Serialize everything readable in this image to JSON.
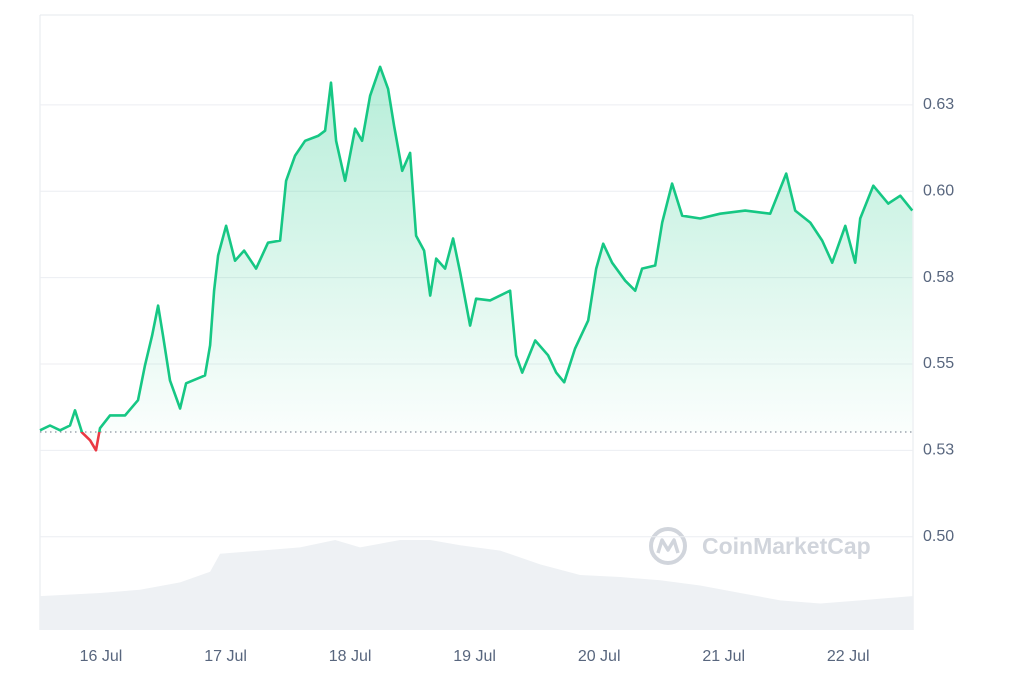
{
  "chart_data": {
    "type": "line",
    "watermark": "CoinMarketCap",
    "xlim": [
      15.51,
      22.52
    ],
    "ylim": [
      0.473,
      0.651
    ],
    "xticks": [
      {
        "value": 16,
        "label": "16 Jul"
      },
      {
        "value": 17,
        "label": "17 Jul"
      },
      {
        "value": 18,
        "label": "18 Jul"
      },
      {
        "value": 19,
        "label": "19 Jul"
      },
      {
        "value": 20,
        "label": "20 Jul"
      },
      {
        "value": 21,
        "label": "21 Jul"
      },
      {
        "value": 22,
        "label": "22 Jul"
      }
    ],
    "yticks": [
      {
        "value": 0.5,
        "label": "0.50"
      },
      {
        "value": 0.525,
        "label": "0.53"
      },
      0.55,
      {
        "value": 0.575,
        "label": "0.58"
      },
      {
        "value": 0.6,
        "label": "0.60"
      },
      {
        "value": 0.625,
        "label": "0.63"
      }
    ],
    "grid": true,
    "baseline": 0.5303,
    "up_color": "#16c784",
    "down_color": "#ea3943",
    "x": [
      15.51,
      15.59,
      15.671,
      15.751,
      15.791,
      15.847,
      15.912,
      15.96,
      15.992,
      16.072,
      16.193,
      16.297,
      16.353,
      16.41,
      16.458,
      16.498,
      16.554,
      16.635,
      16.683,
      16.835,
      16.876,
      16.908,
      16.94,
      17.004,
      17.076,
      17.149,
      17.245,
      17.341,
      17.438,
      17.486,
      17.558,
      17.639,
      17.743,
      17.799,
      17.847,
      17.888,
      17.96,
      18.04,
      18.096,
      18.161,
      18.241,
      18.305,
      18.353,
      18.418,
      18.482,
      18.53,
      18.594,
      18.643,
      18.691,
      18.763,
      18.827,
      18.884,
      18.964,
      19.012,
      19.124,
      19.285,
      19.333,
      19.382,
      19.486,
      19.59,
      19.655,
      19.719,
      19.807,
      19.912,
      19.976,
      20.032,
      20.104,
      20.209,
      20.289,
      20.345,
      20.45,
      20.506,
      20.586,
      20.667,
      20.811,
      20.972,
      21.173,
      21.373,
      21.502,
      21.574,
      21.695,
      21.791,
      21.871,
      21.976,
      22.056,
      22.096,
      22.201,
      22.321,
      22.418,
      22.514
    ],
    "values": [
      0.5308,
      0.5322,
      0.5308,
      0.5322,
      0.5366,
      0.5302,
      0.5279,
      0.525,
      0.5314,
      0.5351,
      0.5351,
      0.5395,
      0.5496,
      0.5582,
      0.5669,
      0.5582,
      0.5452,
      0.5371,
      0.5444,
      0.5467,
      0.5554,
      0.5712,
      0.5814,
      0.59,
      0.5799,
      0.5828,
      0.5776,
      0.5851,
      0.5857,
      0.603,
      0.6103,
      0.6146,
      0.616,
      0.6175,
      0.6314,
      0.6146,
      0.603,
      0.6181,
      0.6146,
      0.6276,
      0.636,
      0.6296,
      0.6189,
      0.6059,
      0.6111,
      0.5871,
      0.5828,
      0.5698,
      0.5805,
      0.5776,
      0.5863,
      0.5764,
      0.5611,
      0.5689,
      0.5684,
      0.5712,
      0.5525,
      0.5475,
      0.5568,
      0.5525,
      0.5475,
      0.5447,
      0.5545,
      0.5626,
      0.5776,
      0.5848,
      0.5793,
      0.5741,
      0.5712,
      0.5776,
      0.5785,
      0.5909,
      0.6022,
      0.5929,
      0.5921,
      0.5935,
      0.5944,
      0.5935,
      0.6051,
      0.5944,
      0.5909,
      0.5857,
      0.5793,
      0.59,
      0.5793,
      0.5921,
      0.6016,
      0.5964,
      0.5987,
      0.5944
    ],
    "volume": {
      "color": "#eef1f4",
      "x": [
        15.51,
        15.992,
        16.313,
        16.635,
        16.876,
        16.956,
        17.277,
        17.598,
        17.88,
        18.08,
        18.402,
        18.643,
        18.884,
        19.205,
        19.526,
        19.847,
        20.169,
        20.49,
        20.811,
        21.133,
        21.454,
        21.775,
        22.096,
        22.514
      ],
      "values": [
        32,
        35,
        38,
        45,
        55,
        72,
        75,
        78,
        85,
        78,
        85,
        85,
        80,
        75,
        62,
        52,
        50,
        47,
        42,
        35,
        28,
        25,
        28,
        32
      ]
    }
  }
}
